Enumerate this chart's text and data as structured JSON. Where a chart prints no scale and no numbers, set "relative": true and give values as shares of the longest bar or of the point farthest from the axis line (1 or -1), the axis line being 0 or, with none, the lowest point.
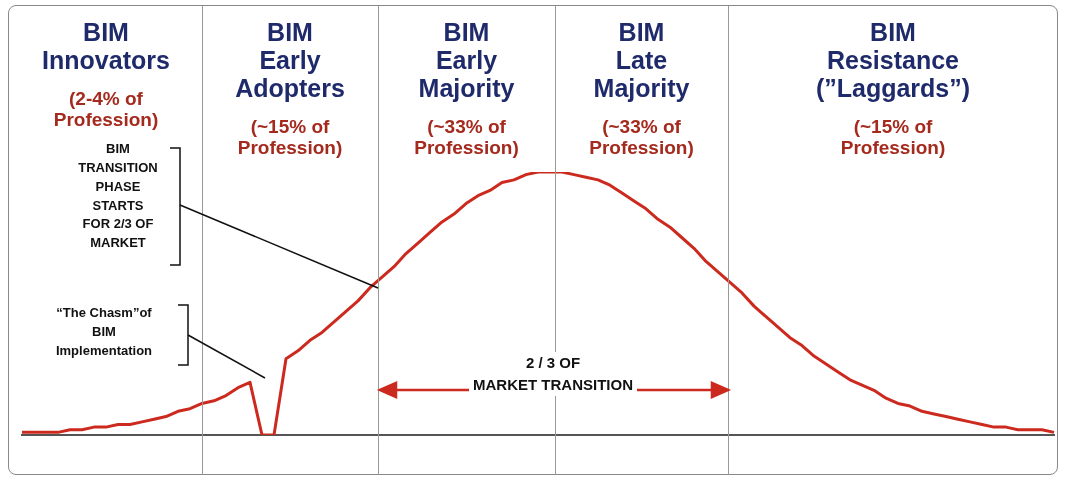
{
  "chart_data": {
    "type": "line",
    "relative": true,
    "marker": "none",
    "annotations": [
      "BIM\nInnovators",
      "(2-4% of\nProfession)",
      "BIM\nEarly\nAdopters",
      "(~15% of\nProfession)",
      "BIM\nEarly\nMajority",
      "(~33% of\nProfession)",
      "BIM\nLate\nMajority",
      "(~33% of\nProfession)",
      "BIM\nResistance\n(”Laggards”)",
      "(~15% of\nProfession)",
      "BIM\nTRANSITION\nPHASE\nSTARTS\nFOR 2/3 OF\nMARKET",
      "“The Chasm”of\nBIM\nImplementation",
      "2 / 3 OF\nMARKET TRANSITION"
    ],
    "categories": [
      null,
      null,
      null,
      null,
      null,
      null,
      null,
      null,
      null,
      null,
      null,
      null,
      null,
      null,
      null,
      null,
      null,
      null,
      null,
      null,
      null,
      null,
      null,
      null,
      null,
      null,
      null,
      null,
      null,
      null,
      null,
      null,
      null,
      null,
      null,
      null,
      null,
      null,
      null,
      null,
      null,
      null,
      null,
      null,
      null,
      null,
      null,
      null,
      null,
      null,
      null,
      null,
      null,
      null,
      null,
      null,
      null,
      null,
      null,
      null,
      null,
      null,
      null,
      null,
      null,
      null,
      null,
      null,
      null,
      null,
      null,
      null,
      null,
      null,
      null,
      null,
      null,
      null,
      null,
      null,
      null,
      null,
      null,
      null,
      null,
      null,
      null
    ],
    "series": [
      {
        "color": "#cc2a1e",
        "values": [
          0.01,
          0.01,
          0.01,
          0.01,
          0.02,
          0.02,
          0.03,
          0.03,
          0.04,
          0.04,
          0.05,
          0.06,
          0.07,
          0.09,
          0.1,
          0.12,
          0.13,
          0.15,
          0.18,
          0.2,
          0,
          0,
          0.29,
          0.32,
          0.36,
          0.39,
          0.43,
          0.47,
          0.51,
          0.56,
          0.6,
          0.64,
          0.69,
          0.73,
          0.77,
          0.81,
          0.84,
          0.88,
          0.91,
          0.93,
          0.96,
          0.97,
          0.99,
          1,
          1,
          1,
          0.99,
          0.98,
          0.97,
          0.95,
          0.92,
          0.89,
          0.86,
          0.82,
          0.79,
          0.75,
          0.71,
          0.66,
          0.62,
          0.58,
          0.54,
          0.49,
          0.45,
          0.41,
          0.37,
          0.34,
          0.3,
          0.27,
          0.24,
          0.21,
          0.19,
          0.17,
          0.14,
          0.12,
          0.11,
          0.09,
          0.08,
          0.07,
          0.06,
          0.05,
          0.04,
          0.03,
          0.03,
          0.02,
          0.02,
          0.02,
          0.01
        ]
      }
    ]
  }
}
